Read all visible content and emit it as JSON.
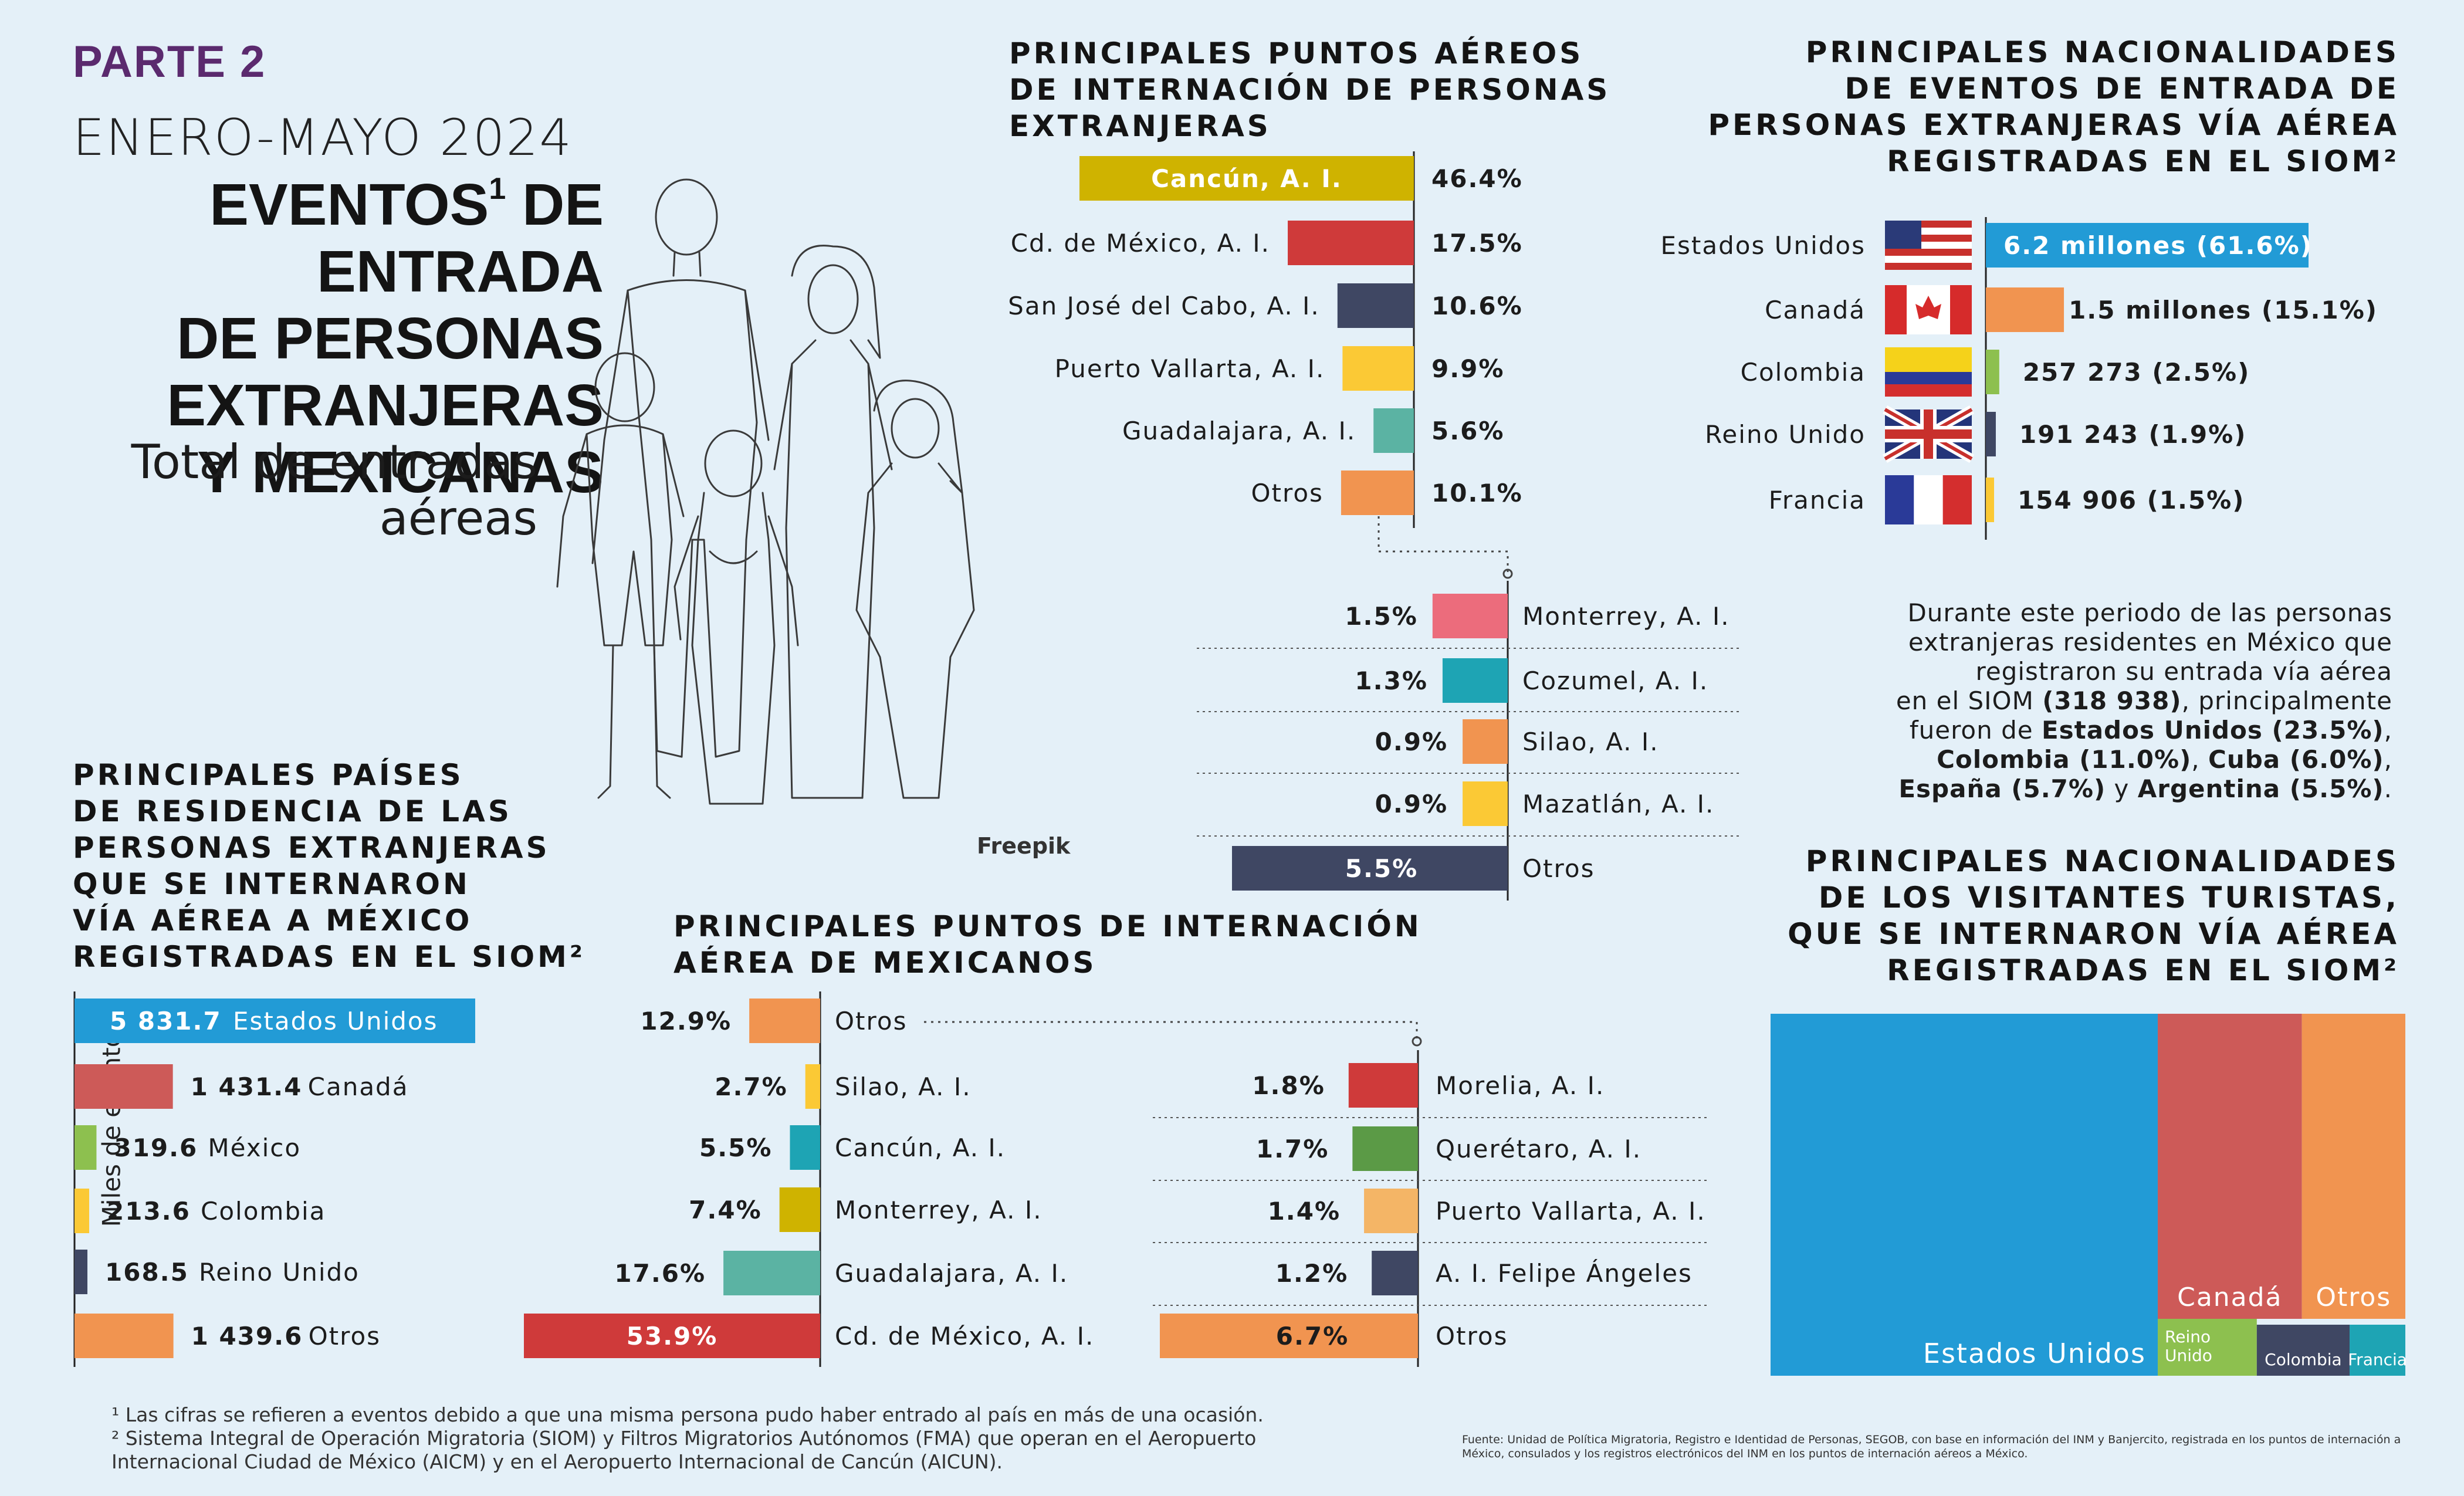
{
  "header": {
    "parte": "PARTE 2",
    "periodo": "ENERO-MAYO 2024",
    "titulo_l1": "EVENTOS",
    "titulo_sup": "1",
    "titulo_l1b": " DE ENTRADA",
    "titulo_l2": "DE PERSONAS",
    "titulo_l3": "EXTRANJERAS",
    "titulo_l4": "Y MEXICANAS",
    "total_l1": "Total de entradas",
    "total_l2": "aéreas",
    "freepik": "Freepik"
  },
  "note": {
    "l1": "Durante este periodo de las personas",
    "l2": "extranjeras residentes en México que",
    "l3": "registraron su entrada vía aérea",
    "l4a": "en el SIOM ",
    "l4b": "(318 938)",
    "l4c": ", principalmente",
    "l5a": "fueron de ",
    "l5b": "Estados Unidos (23.5%)",
    "l5c": ",",
    "l6a": "Colombia (11.0%)",
    "l6b": ", ",
    "l6c": "Cuba (6.0%)",
    "l6d": ",",
    "l7a": "España (5.7%)",
    "l7b": " y ",
    "l7c": "Argentina (5.5%)",
    "l7d": "."
  },
  "footnotes": {
    "f1": "¹ Las cifras se refieren a eventos debido a que una misma persona pudo haber entrado al país en más de una ocasión.",
    "f2": "² Sistema Integral de Operación Migratoria (SIOM) y Filtros Migratorios Autónomos (FMA) que operan en el Aeropuerto",
    "f3": "Internacional Ciudad de México (AICM) y en el Aeropuerto Internacional de Cancún (AICUN).",
    "fuente": "Fuente:  Unidad de Política Migratoria, Registro e Identidad de Personas, SEGOB, con base en información del INM y Banjercito, registrada en los puntos de internación a México, consulados y los registros electrónicos del INM en los puntos de internación aéreos a México."
  },
  "chart_data": [
    {
      "id": "puntos-extranjeros",
      "type": "bar",
      "title": "PRINCIPALES PUNTOS AÉREOS DE INTERNACIÓN DE PERSONAS EXTRANJERAS",
      "title_lines": [
        "PRINCIPALES PUNTOS AÉREOS",
        "DE INTERNACIÓN DE PERSONAS",
        "EXTRANJERAS"
      ],
      "categories": [
        "Cancún, A. I.",
        "Cd. de México, A. I.",
        "San José del Cabo, A. I.",
        "Puerto Vallarta, A. I.",
        "Guadalajara, A. I.",
        "Otros"
      ],
      "values": [
        46.4,
        17.5,
        10.6,
        9.9,
        5.6,
        10.1
      ],
      "labels": [
        "46.4%",
        "17.5%",
        "10.6%",
        "9.9%",
        "5.6%",
        "10.1%"
      ],
      "colors": [
        "#cfb300",
        "#cf3a3a",
        "#3f4763",
        "#fbc935",
        "#5bb3a3",
        "#f19450"
      ]
    },
    {
      "id": "otros-extranjeros",
      "type": "bar",
      "categories": [
        "Monterrey, A. I.",
        "Cozumel, A. I.",
        "Silao, A. I.",
        "Mazatlán, A. I.",
        "Otros"
      ],
      "values": [
        1.5,
        1.3,
        0.9,
        0.9,
        5.5
      ],
      "labels": [
        "1.5%",
        "1.3%",
        "0.9%",
        "0.9%",
        "5.5%"
      ],
      "colors": [
        "#ec6c7c",
        "#1ea4b4",
        "#f19450",
        "#fbc935",
        "#3f4763"
      ]
    },
    {
      "id": "nacionalidades-extranjeros",
      "type": "bar",
      "title": "PRINCIPALES NACIONALIDADES DE EVENTOS DE ENTRADA DE PERSONAS EXTRANJERAS VÍA AÉREA REGISTRADAS EN EL SIOM²",
      "title_lines": [
        "PRINCIPALES NACIONALIDADES",
        "DE EVENTOS DE ENTRADA DE",
        "PERSONAS EXTRANJERAS VÍA AÉREA",
        "REGISTRADAS EN EL SIOM²"
      ],
      "categories": [
        "Estados Unidos",
        "Canadá",
        "Colombia",
        "Reino Unido",
        "Francia"
      ],
      "values": [
        6200000,
        1500000,
        257273,
        191243,
        154906
      ],
      "labels": [
        "6.2 millones  (61.6%)",
        "1.5 millones  (15.1%)",
        "257 273   (2.5%)",
        "191 243    (1.9%)",
        "154 906   (1.5%)"
      ],
      "shares": [
        61.6,
        15.1,
        2.5,
        1.9,
        1.5
      ],
      "colors": [
        "#229bd6",
        "#f19450",
        "#8dc04f",
        "#3f4763",
        "#fbc935"
      ],
      "flags": [
        "usa-flag-icon",
        "canada-flag-icon",
        "colombia-flag-icon",
        "uk-flag-icon",
        "france-flag-icon"
      ]
    },
    {
      "id": "paises-residencia",
      "type": "bar",
      "title": "PRINCIPALES PAÍSES DE RESIDENCIA DE LAS PERSONAS EXTRANJERAS QUE SE INTERNARON VÍA AÉREA A MÉXICO REGISTRADAS EN EL SIOM²",
      "title_lines": [
        "PRINCIPALES PAÍSES",
        "DE RESIDENCIA DE LAS",
        "PERSONAS EXTRANJERAS",
        "QUE SE INTERNARON",
        "VÍA AÉREA A MÉXICO",
        "REGISTRADAS EN EL SIOM²"
      ],
      "ylabel": "Miles de eventos",
      "categories": [
        "Estados Unidos",
        "Canadá",
        "México",
        "Colombia",
        "Reino Unido",
        "Otros"
      ],
      "values": [
        5831.7,
        1431.4,
        319.6,
        213.6,
        168.5,
        1439.6
      ],
      "labels": [
        "5 831.7",
        "1 431.4",
        "319.6",
        "213.6",
        "168.5",
        "1 439.6"
      ],
      "colors": [
        "#229bd6",
        "#cd5a58",
        "#8dc04f",
        "#fbc935",
        "#3f4763",
        "#f19450"
      ]
    },
    {
      "id": "puntos-mexicanos",
      "type": "bar",
      "title": "PRINCIPALES PUNTOS DE INTERNACIÓN AÉREA DE MEXICANOS",
      "title_lines": [
        "PRINCIPALES PUNTOS DE INTERNACIÓN",
        "AÉREA DE MEXICANOS"
      ],
      "categories": [
        "Otros",
        "Silao, A. I.",
        "Cancún, A. I.",
        "Monterrey, A. I.",
        "Guadalajara, A. I.",
        "Cd. de México, A. I."
      ],
      "values": [
        12.9,
        2.7,
        5.5,
        7.4,
        17.6,
        53.9
      ],
      "labels": [
        "12.9%",
        "2.7%",
        "5.5%",
        "7.4%",
        "17.6%",
        "53.9%"
      ],
      "colors": [
        "#f19450",
        "#fbc935",
        "#1ea4b4",
        "#cfb300",
        "#5bb3a3",
        "#cf3a3a"
      ]
    },
    {
      "id": "otros-mexicanos",
      "type": "bar",
      "categories": [
        "Morelia, A. I.",
        "Querétaro, A. I.",
        "Puerto Vallarta, A. I.",
        "A. I. Felipe Ángeles",
        "Otros"
      ],
      "values": [
        1.8,
        1.7,
        1.4,
        1.2,
        6.7
      ],
      "labels": [
        "1.8%",
        "1.7%",
        "1.4%",
        "1.2%",
        "6.7%"
      ],
      "colors": [
        "#cf3a3a",
        "#5b9a46",
        "#f4b566",
        "#3f4763",
        "#f19450"
      ]
    },
    {
      "id": "visitantes-turistas",
      "type": "heatmap",
      "subtype": "treemap",
      "title": "PRINCIPALES NACIONALIDADES DE LOS VISITANTES TURISTAS, QUE SE INTERNARON VÍA AÉREA REGISTRADAS EN EL SIOM²",
      "title_lines": [
        "PRINCIPALES NACIONALIDADES",
        "DE LOS VISITANTES TURISTAS,",
        "QUE SE INTERNARON VÍA AÉREA",
        "REGISTRADAS EN EL SIOM²"
      ],
      "categories": [
        "Estados Unidos",
        "Canadá",
        "Otros",
        "Reino Unido",
        "Colombia",
        "Francia"
      ],
      "labels": [
        "Estados Unidos",
        "Canadá",
        "Otros",
        "Reino\nUnido",
        "Colombia",
        "Francia"
      ],
      "values": [
        61.0,
        20.5,
        14.5,
        1.6,
        1.5,
        0.9
      ],
      "colors": [
        "#229bd6",
        "#cd5a58",
        "#f19450",
        "#8dc04f",
        "#3f4763",
        "#1ea4b4"
      ]
    }
  ]
}
